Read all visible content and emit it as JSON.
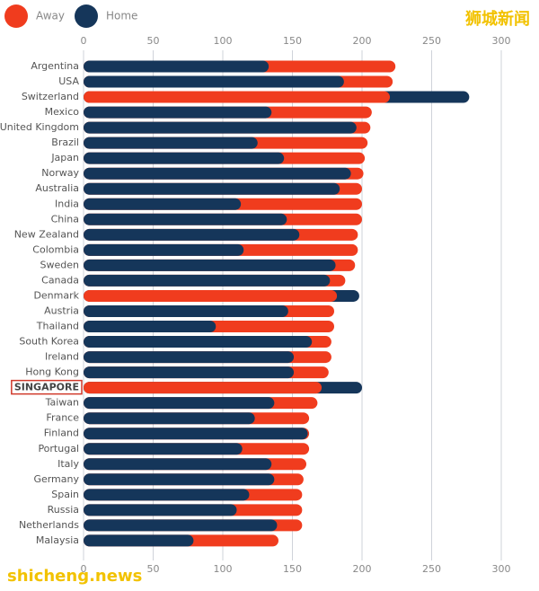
{
  "chart_data": {
    "type": "overlap-barh",
    "categories": [
      "Argentina",
      "USA",
      "Switzerland",
      "Mexico",
      "United Kingdom",
      "Brazil",
      "Japan",
      "Norway",
      "Australia",
      "India",
      "China",
      "New Zealand",
      "Colombia",
      "Sweden",
      "Canada",
      "Denmark",
      "Austria",
      "Thailand",
      "South Korea",
      "Ireland",
      "Hong Kong",
      "SINGAPORE",
      "Taiwan",
      "France",
      "Finland",
      "Portugal",
      "Italy",
      "Germany",
      "Spain",
      "Russia",
      "Netherlands",
      "Malaysia"
    ],
    "series": [
      {
        "name": "Away",
        "color": "#f03c1e",
        "values": [
          224,
          222,
          220,
          207,
          206,
          204,
          202,
          201,
          200,
          200,
          200,
          197,
          197,
          195,
          188,
          182,
          180,
          180,
          178,
          178,
          176,
          171,
          168,
          162,
          162,
          162,
          160,
          158,
          157,
          157,
          157,
          140
        ]
      },
      {
        "name": "Home",
        "color": "#15365a",
        "values": [
          133,
          187,
          277,
          135,
          196,
          125,
          144,
          192,
          184,
          113,
          146,
          155,
          115,
          181,
          177,
          198,
          147,
          95,
          164,
          151,
          151,
          200,
          137,
          123,
          161,
          114,
          135,
          137,
          119,
          110,
          139,
          79
        ]
      }
    ],
    "highlight_index": 21,
    "xlim": [
      0,
      300
    ],
    "xticks": [
      0,
      50,
      100,
      150,
      200,
      250,
      300
    ],
    "grid": true,
    "watermarks": [
      "狮城新闻",
      "shicheng.news"
    ]
  }
}
